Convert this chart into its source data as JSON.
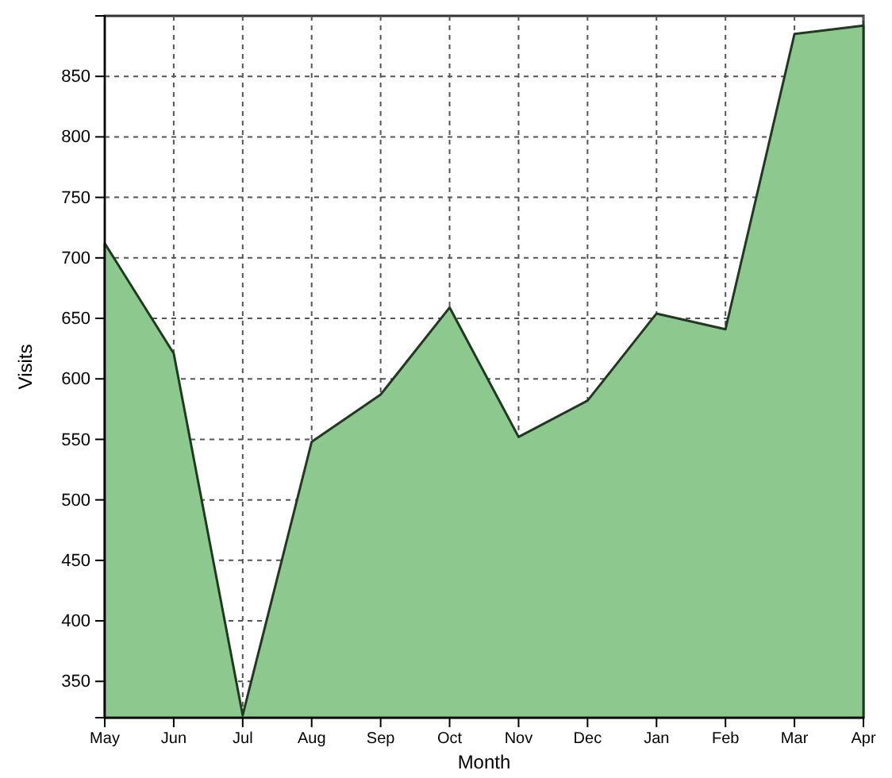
{
  "chart_data": {
    "type": "area",
    "xlabel": "Month",
    "ylabel": "Visits",
    "categories": [
      "May",
      "Jun",
      "Jul",
      "Aug",
      "Sep",
      "Oct",
      "Nov",
      "Dec",
      "Jan",
      "Feb",
      "Mar",
      "Apr"
    ],
    "series": [
      {
        "color": "#8dc98f",
        "values": [
          712,
          621,
          322,
          548,
          587,
          659,
          552,
          582,
          654,
          641,
          885,
          892
        ]
      }
    ],
    "ylim": [
      320,
      900
    ],
    "yticks": [
      350,
      400,
      450,
      500,
      550,
      600,
      650,
      700,
      750,
      800,
      850
    ],
    "grid": true
  }
}
